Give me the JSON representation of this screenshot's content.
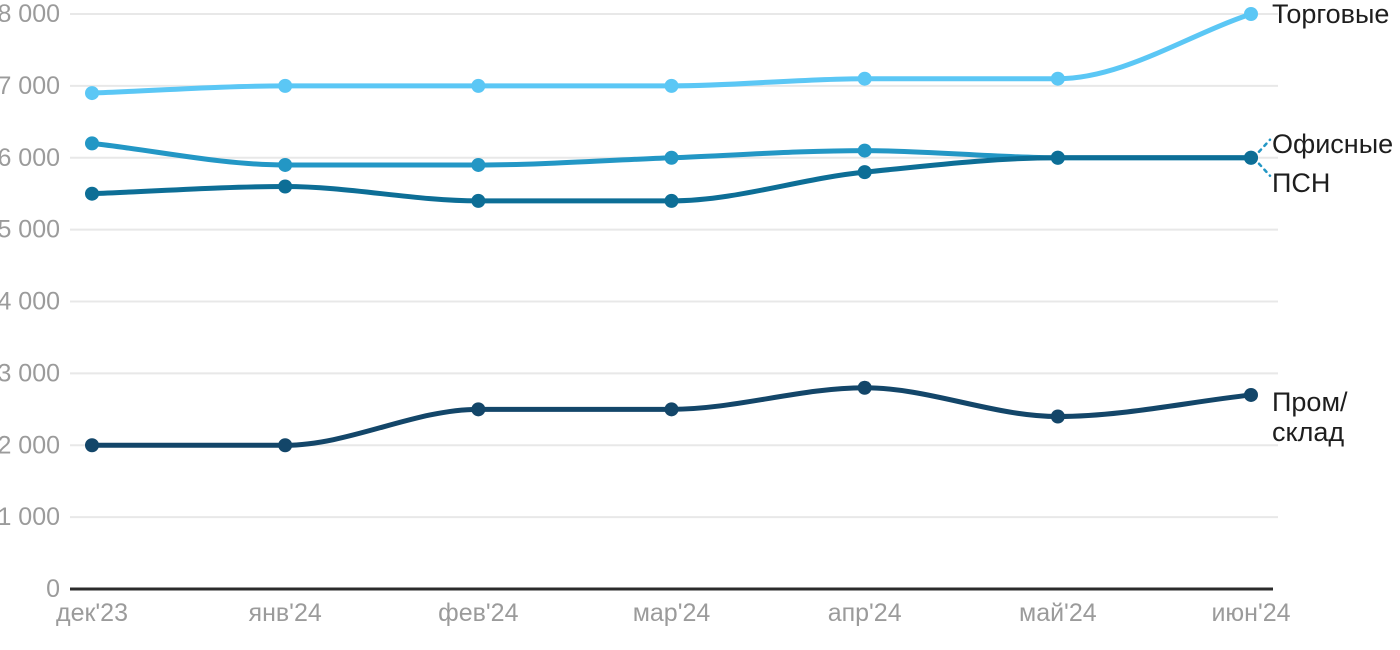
{
  "chart_data": {
    "type": "line",
    "x": [
      "дек'23",
      "янв'24",
      "фев'24",
      "мар'24",
      "апр'24",
      "май'24",
      "июн'24"
    ],
    "series": [
      {
        "name": "Торговые",
        "values": [
          6900,
          7000,
          7000,
          7000,
          7100,
          7100,
          8000
        ],
        "color": "#5BC7F5",
        "label_lines": [
          "Торговые"
        ],
        "label_dy": [
          9
        ],
        "leader": false
      },
      {
        "name": "Офисные",
        "values": [
          6200,
          5900,
          5900,
          6000,
          6100,
          6000,
          6000
        ],
        "color": "#2397C5",
        "label_lines": [
          "Офисные"
        ],
        "label_dy": [
          -5
        ],
        "leader": "up"
      },
      {
        "name": "ПСН",
        "values": [
          5500,
          5600,
          5400,
          5400,
          5800,
          6000,
          6000
        ],
        "color": "#0D6E96",
        "label_lines": [
          "ПСН"
        ],
        "label_dy": [
          34
        ],
        "leader": "down"
      },
      {
        "name": "Пром/склад",
        "values": [
          2000,
          2000,
          2500,
          2500,
          2800,
          2400,
          2700
        ],
        "color": "#134669",
        "label_lines": [
          "Пром/",
          "склад"
        ],
        "label_dy": [
          16,
          46
        ],
        "leader": false
      }
    ],
    "title": "",
    "xlabel": "",
    "ylabel": "",
    "ylim": [
      0,
      8000
    ],
    "ytick_step": 1000,
    "ytick_labels": [
      "0",
      "1 000",
      "2 000",
      "3 000",
      "4 000",
      "5 000",
      "6 000",
      "7 000",
      "8 000"
    ],
    "grid": true,
    "legend_position": "right-of-line-end"
  },
  "colors": {
    "grid": "#E8E8E8",
    "axis": "#2B2B2B",
    "tick_label": "#9B9B9B",
    "series_label": "#1E1E1E",
    "leader": "#2397C5",
    "background": "#FFFFFF"
  }
}
